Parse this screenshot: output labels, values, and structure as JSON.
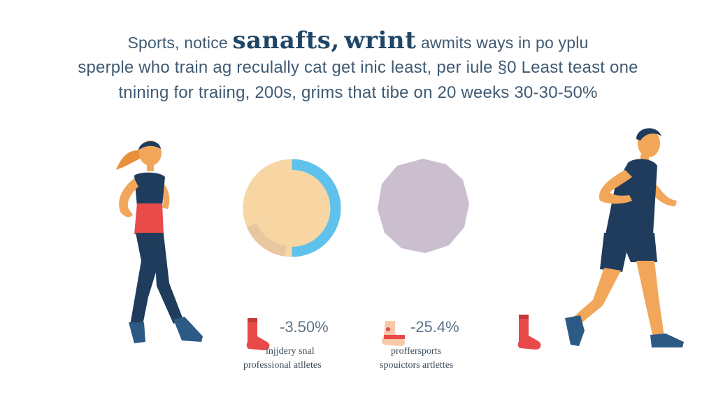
{
  "headline": {
    "line1_before": "Sports, notice",
    "line1_bold_1": "sanafts,",
    "line1_bold_2": "wrint",
    "line1_after": "awmits ways in po yplu",
    "line2": "sperple who train ag reculally cat get inic least, per iule §0 Least teast one",
    "line3": "tnining for traiing, 200s, grims that tibe on 20 weeks 30-30-50%"
  },
  "charts": {
    "donut": {
      "type": "donut",
      "colors": [
        "#f7d6a3",
        "#5ec2ec",
        "#e8c7a0"
      ]
    },
    "circle": {
      "color": "#cbbfcf"
    }
  },
  "stats": [
    {
      "value": "-3.50%",
      "label1": "injjdery snal",
      "label2": "professional atlletes",
      "icon": "sock-icon",
      "color": "#e84a4a"
    },
    {
      "value": "-25.4%",
      "label1": "proffersports",
      "label2": "spouictors artlettes",
      "icon": "ankle-icon",
      "color": "#e84a4a"
    }
  ],
  "colors": {
    "skin": "#f2a65a",
    "navy": "#1f3c5c",
    "accent_red": "#e94b4b",
    "hair": "#e8903a"
  }
}
